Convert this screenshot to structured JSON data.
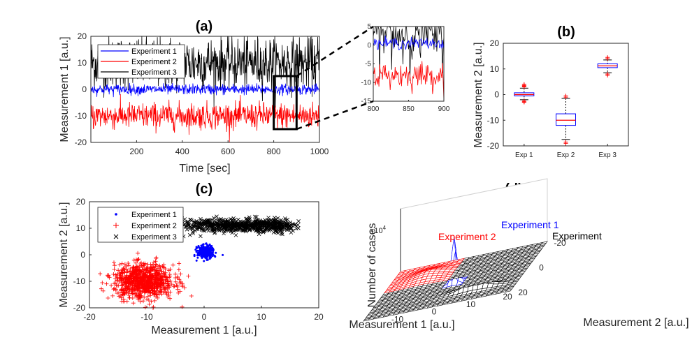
{
  "figure": {
    "panel_a": {
      "title": "(a)",
      "xlabel": "Time [sec]",
      "ylabel": "Measurement 1 [a.u.]"
    },
    "inset": {},
    "panel_b": {
      "title": "(b)",
      "ylabel": "Measurement 2 [a.u.]"
    },
    "panel_c": {
      "title": "(c)",
      "xlabel": "Measurement 1 [a.u.]",
      "ylabel": "Measurement 2 [a.u.]"
    },
    "panel_d": {
      "title": "(d)",
      "xlabel": "Measurement 1 [a.u.]",
      "ylabel": "Measurement 2 [a.u.]",
      "zlabel": "Number of cases",
      "z_exponent_base": "×10",
      "z_exponent": "4",
      "label_exp1": "Experiment 1",
      "label_exp2": "Experiment 2",
      "label_exp3": "Experiment"
    }
  },
  "chart_data": [
    {
      "panel": "a",
      "type": "line",
      "title": "(a)",
      "xlabel": "Time [sec]",
      "ylabel": "Measurement 1 [a.u.]",
      "xlim": [
        0,
        1000
      ],
      "ylim": [
        -20,
        20
      ],
      "xticks": [
        200,
        400,
        600,
        800,
        1000
      ],
      "yticks": [
        -20,
        -10,
        0,
        10,
        20
      ],
      "legend_position": "top-left",
      "series": [
        {
          "name": "Experiment 1",
          "color": "#0000ff",
          "mean": 0,
          "spread": 1
        },
        {
          "name": "Experiment 2",
          "color": "#ff0000",
          "mean": -10,
          "spread": 2.5
        },
        {
          "name": "Experiment 3",
          "color": "#000000",
          "mean": 10,
          "spread": 5
        }
      ],
      "highlight_window": {
        "x": [
          800,
          900
        ],
        "y": [
          -15,
          5
        ]
      }
    },
    {
      "panel": "a-inset",
      "type": "line",
      "xlim": [
        800,
        900
      ],
      "ylim": [
        -15,
        5
      ],
      "xticks": [
        800,
        850,
        900
      ],
      "yticks": [
        -15,
        -10,
        -5,
        0,
        5
      ],
      "series": [
        {
          "color": "#0000ff",
          "mean": 0.5,
          "spread": 0.8
        },
        {
          "color": "#ff0000",
          "mean": -8,
          "spread": 1.8
        },
        {
          "color": "#000000",
          "mean": 3,
          "spread": 4
        }
      ]
    },
    {
      "panel": "b",
      "type": "box",
      "title": "(b)",
      "ylabel": "Measurement 2 [a.u.]",
      "categories": [
        "Exp 1",
        "Exp 2",
        "Exp 3"
      ],
      "ylim": [
        -20,
        20
      ],
      "yticks": [
        -20,
        -10,
        0,
        10,
        20
      ],
      "boxes": [
        {
          "q1": -0.5,
          "median": 0,
          "q3": 0.7,
          "whisker_low": -2,
          "whisker_high": 2.5,
          "outliers": [
            -3,
            -2.8,
            -2.5,
            3,
            3.3,
            3.6,
            4
          ]
        },
        {
          "q1": -12,
          "median": -10,
          "q3": -7.5,
          "whisker_low": -17.5,
          "whisker_high": -1.5,
          "outliers": [
            -18.5,
            -19,
            -1,
            -0.5
          ]
        },
        {
          "q1": 10.5,
          "median": 11.2,
          "q3": 12,
          "whisker_low": 8.5,
          "whisker_high": 13.5,
          "outliers": [
            7.5,
            8,
            14,
            14.5
          ]
        }
      ]
    },
    {
      "panel": "c",
      "type": "scatter",
      "title": "(c)",
      "xlabel": "Measurement 1 [a.u.]",
      "ylabel": "Measurement 2 [a.u.]",
      "xlim": [
        -20,
        20
      ],
      "ylim": [
        -20,
        20
      ],
      "xticks": [
        -20,
        -10,
        0,
        10,
        20
      ],
      "yticks": [
        -20,
        -10,
        0,
        10,
        20
      ],
      "legend_position": "top-left",
      "series": [
        {
          "name": "Experiment 1",
          "color": "#0000ff",
          "marker": "dot",
          "x_range": [
            -1.5,
            2
          ],
          "y_range": [
            -2,
            4
          ]
        },
        {
          "name": "Experiment 2",
          "color": "#ff0000",
          "marker": "plus",
          "x_range": [
            -17,
            -4
          ],
          "y_range": [
            -18,
            -2
          ]
        },
        {
          "name": "Experiment 3",
          "color": "#000000",
          "marker": "cross",
          "x_range": [
            -3,
            20
          ],
          "y_range": [
            8,
            14
          ]
        }
      ]
    },
    {
      "panel": "d",
      "type": "surface",
      "title": "(d)",
      "xlabel": "Measurement 1 [a.u.]",
      "ylabel": "Measurement 2 [a.u.]",
      "zlabel": "Number of cases",
      "z_scale_exponent": 4,
      "xticks": [
        -10,
        0,
        10,
        20
      ],
      "yticks": [
        -20,
        0,
        20
      ],
      "series": [
        {
          "name": "Experiment 1",
          "color": "#0000ff",
          "peak": "tall narrow",
          "center": [
            0,
            0
          ]
        },
        {
          "name": "Experiment 2",
          "color": "#ff0000",
          "peak": "broad flat",
          "center": [
            -10,
            -10
          ]
        },
        {
          "name": "Experiment",
          "color": "#000000",
          "peak": "low wide",
          "center": [
            8,
            11
          ]
        }
      ]
    }
  ]
}
